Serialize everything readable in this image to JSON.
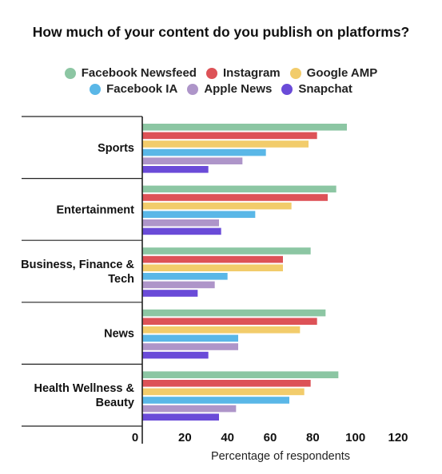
{
  "chart_data": {
    "type": "bar",
    "orientation": "horizontal",
    "title": "How much of your content do you publish on platforms?",
    "xlabel": "Percentage of respondents",
    "ylabel": "",
    "xlim": [
      0,
      120
    ],
    "xticks": [
      0,
      20,
      40,
      60,
      80,
      100,
      120
    ],
    "categories": [
      [
        "Sports"
      ],
      [
        "Entertainment"
      ],
      [
        "Business, Finance &",
        "Tech"
      ],
      [
        "News"
      ],
      [
        "Health Wellness &",
        "Beauty"
      ]
    ],
    "series": [
      {
        "name": "Facebook Newsfeed",
        "color": "#8cc6a3",
        "values": [
          96,
          91,
          79,
          86,
          92
        ]
      },
      {
        "name": "Instagram",
        "color": "#dd5257",
        "values": [
          82,
          87,
          66,
          82,
          79
        ]
      },
      {
        "name": "Google AMP",
        "color": "#f2cc6b",
        "values": [
          78,
          70,
          66,
          74,
          76
        ]
      },
      {
        "name": "Facebook IA",
        "color": "#5ab7e7",
        "values": [
          58,
          53,
          40,
          45,
          69
        ]
      },
      {
        "name": "Apple News",
        "color": "#ae95c9",
        "values": [
          47,
          36,
          34,
          45,
          44
        ]
      },
      {
        "name": "Snapchat",
        "color": "#6a4bd8",
        "values": [
          31,
          37,
          26,
          31,
          36
        ]
      }
    ],
    "legend_position": "top",
    "grid": false
  }
}
